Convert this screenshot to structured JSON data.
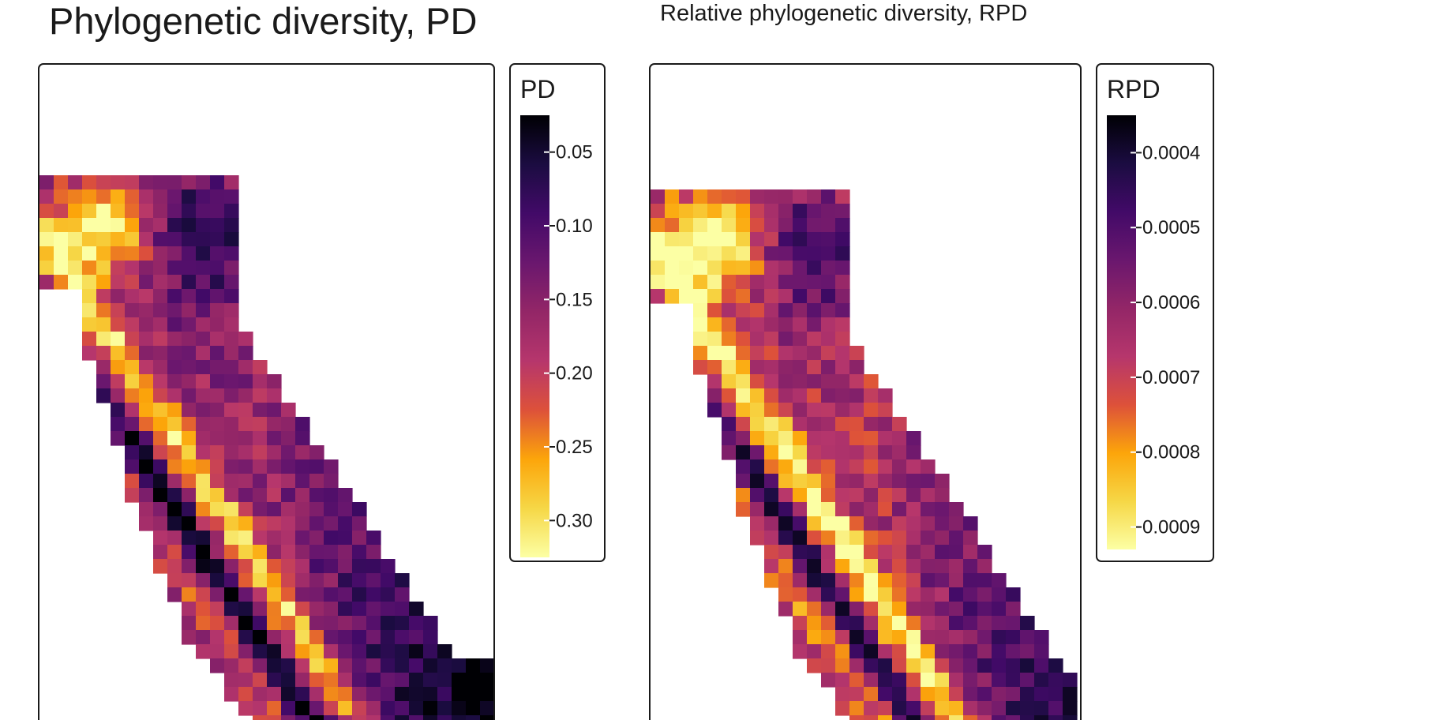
{
  "titles": {
    "left": "Phylogenetic diversity, PD",
    "right": "Relative phylogenetic diversity, RPD"
  },
  "chart_data": [
    {
      "type": "heatmap",
      "title": "Phylogenetic diversity, PD",
      "variable": "PD",
      "colormap": "inferno (reversed)",
      "colors": [
        "#fcffa4",
        "#f6d746",
        "#fca50a",
        "#dd513a",
        "#b6366c",
        "#932667",
        "#6a176e",
        "#420a68",
        "#1b0c41",
        "#000004"
      ],
      "legend": {
        "title": "PD",
        "ticks": [
          "0.05",
          "0.10",
          "0.15",
          "0.20",
          "0.25",
          "0.30"
        ],
        "tick_values": [
          0.05,
          0.1,
          0.15,
          0.2,
          0.25,
          0.3
        ],
        "range": [
          0.025,
          0.325
        ]
      },
      "grid_cell_value_range": [
        0.02,
        0.32
      ],
      "axes": "none (map of California, gridded cells)"
    },
    {
      "type": "heatmap",
      "title": "Relative phylogenetic diversity, RPD",
      "variable": "RPD",
      "colormap": "inferno (reversed)",
      "colors": [
        "#fcffa4",
        "#f6d746",
        "#fca50a",
        "#dd513a",
        "#b6366c",
        "#932667",
        "#6a176e",
        "#420a68",
        "#1b0c41",
        "#000004"
      ],
      "legend": {
        "title": "RPD",
        "ticks": [
          "0.0004",
          "0.0005",
          "0.0006",
          "0.0007",
          "0.0008",
          "0.0009"
        ],
        "tick_values": [
          0.0004,
          0.0005,
          0.0006,
          0.0007,
          0.0008,
          0.0009
        ],
        "range": [
          0.00035,
          0.00093
        ]
      },
      "grid_cell_value_range": [
        0.00035,
        0.00093
      ],
      "axes": "none (map of California, gridded cells)"
    }
  ]
}
